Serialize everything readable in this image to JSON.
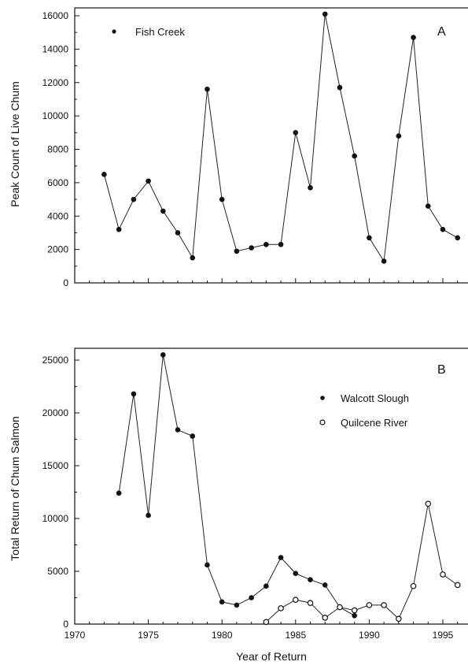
{
  "x_axis_label": "Year of Return",
  "chart_data": [
    {
      "type": "line",
      "panel_label": "A",
      "title": "",
      "xlabel": "",
      "ylabel": "Peak Count of Live Chum",
      "xlim": [
        1970,
        1997
      ],
      "ylim": [
        0,
        16500
      ],
      "x_ticks": [
        1970,
        1975,
        1980,
        1985,
        1990,
        1995
      ],
      "x_ticks_labeled": false,
      "y_ticks": [
        0,
        2000,
        4000,
        6000,
        8000,
        10000,
        12000,
        14000,
        16000
      ],
      "y_tick_labels": [
        "0",
        "2000",
        "4000",
        "6000",
        "8000",
        "10000",
        "12000",
        "14000",
        "16000"
      ],
      "legend_position": "top-left",
      "series": [
        {
          "name": "Fish Creek",
          "marker": "filled",
          "x": [
            1972,
            1973,
            1974,
            1975,
            1976,
            1977,
            1978,
            1979,
            1980,
            1981,
            1982,
            1983,
            1984,
            1985,
            1986,
            1987,
            1988,
            1989,
            1990,
            1991,
            1992,
            1993,
            1994,
            1995,
            1996
          ],
          "y": [
            6500,
            3200,
            5000,
            6100,
            4300,
            3000,
            1500,
            11600,
            5000,
            1900,
            2100,
            2300,
            2300,
            9000,
            5700,
            16100,
            11700,
            7600,
            2700,
            1300,
            8800,
            14700,
            4600,
            3200,
            2700
          ]
        }
      ]
    },
    {
      "type": "line",
      "panel_label": "B",
      "title": "",
      "xlabel": "Year of Return",
      "ylabel": "Total Return of Chum Salmon",
      "xlim": [
        1970,
        1997
      ],
      "ylim": [
        0,
        26000
      ],
      "x_ticks": [
        1970,
        1975,
        1980,
        1985,
        1990,
        1995
      ],
      "x_tick_labels": [
        "1970",
        "1975",
        "1980",
        "1985",
        "1990",
        "1995"
      ],
      "y_ticks": [
        0,
        5000,
        10000,
        15000,
        20000,
        25000
      ],
      "y_tick_labels": [
        "0",
        "5000",
        "10000",
        "15000",
        "20000",
        "25000"
      ],
      "legend_position": "top-right",
      "series": [
        {
          "name": "Walcott Slough",
          "marker": "filled",
          "x": [
            1973,
            1974,
            1975,
            1976,
            1977,
            1978,
            1979,
            1980,
            1981,
            1982,
            1983,
            1984,
            1985,
            1986,
            1987,
            1988,
            1989
          ],
          "y": [
            12400,
            21800,
            10300,
            25500,
            18400,
            17800,
            5600,
            2100,
            1800,
            2500,
            3600,
            6300,
            4800,
            4200,
            3700,
            1600,
            800
          ]
        },
        {
          "name": "Quilcene River",
          "marker": "open",
          "x": [
            1983,
            1984,
            1985,
            1986,
            1987,
            1988,
            1989,
            1990,
            1991,
            1992,
            1993,
            1994,
            1995,
            1996
          ],
          "y": [
            200,
            1500,
            2300,
            2000,
            600,
            1600,
            1300,
            1800,
            1800,
            500,
            3600,
            11400,
            4700,
            3700
          ]
        }
      ]
    }
  ]
}
